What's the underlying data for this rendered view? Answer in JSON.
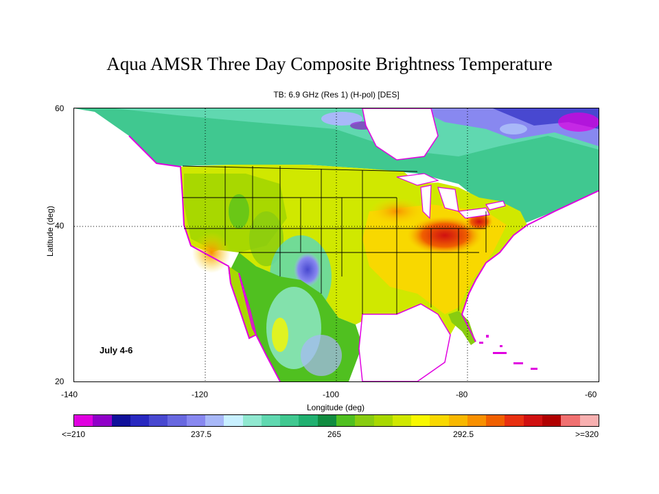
{
  "title": "Aqua AMSR Three Day Composite Brightness Temperature",
  "subtitle": "TB:  6.9 GHz (Res 1) (H-pol) [DES]",
  "map": {
    "extent": {
      "lon": [
        -140,
        -60
      ],
      "lat": [
        20,
        60
      ]
    },
    "x_ticks": [
      "-140",
      "-120",
      "-100",
      "-80",
      "-60"
    ],
    "y_ticks": [
      "60",
      "40",
      "20"
    ],
    "xlabel": "Longitude (deg)",
    "ylabel": "Latitude (deg)",
    "date_label": "July 4-6",
    "ocean_color": "#ffffff",
    "graticule": "dotted"
  },
  "colorbar": {
    "labels": [
      "<=210",
      "237.5",
      "265",
      "292.5",
      ">=320"
    ],
    "colors": [
      "#e000e0",
      "#9000c8",
      "#10109a",
      "#2828c0",
      "#4848d0",
      "#6868e0",
      "#8888f0",
      "#a8b8f8",
      "#c8f0ff",
      "#90e8d0",
      "#60d8b0",
      "#40c890",
      "#20b070",
      "#108c40",
      "#50c020",
      "#88cc10",
      "#a8d800",
      "#d0e800",
      "#f8f800",
      "#f8d800",
      "#f8b800",
      "#f89000",
      "#f06000",
      "#e83010",
      "#d01010",
      "#b00000",
      "#f07070",
      "#f8b0b0"
    ]
  }
}
